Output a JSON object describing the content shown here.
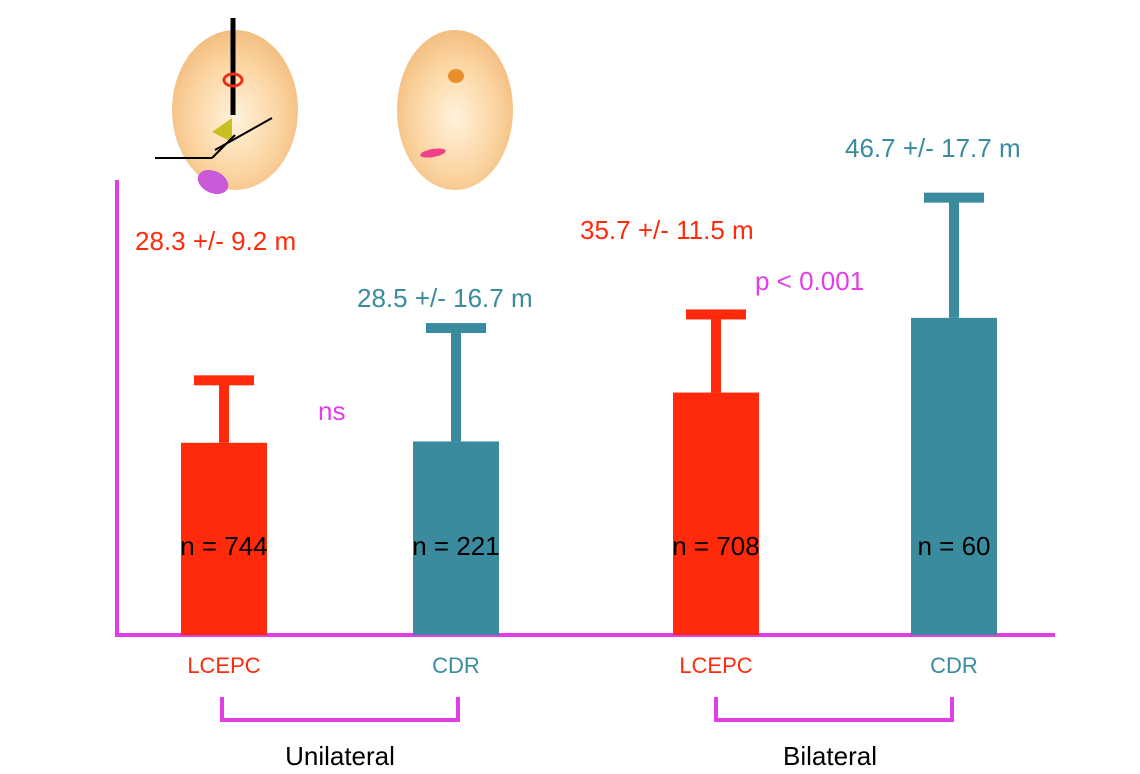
{
  "chart_data": {
    "type": "bar",
    "categories": [
      "LCEPC",
      "CDR",
      "LCEPC",
      "CDR"
    ],
    "groups": [
      "Unilateral",
      "Bilateral"
    ],
    "values": [
      28.3,
      28.5,
      35.7,
      46.7
    ],
    "errors": [
      9.2,
      16.7,
      11.5,
      17.7
    ],
    "value_labels": [
      "28.3 +/- 9.2 m",
      "28.5 +/- 16.7 m",
      "35.7 +/- 11.5 m",
      "46.7 +/- 17.7 m"
    ],
    "n_labels": [
      "n = 744",
      "n = 221",
      "n = 708",
      "n = 60"
    ],
    "colors": [
      "#ff2a0c",
      "#3a8b9d",
      "#ff2a0c",
      "#3a8b9d"
    ],
    "annotations": [
      "ns",
      "p < 0.001"
    ],
    "ylim": [
      0,
      67
    ],
    "axis_color": "#e23ee8"
  }
}
